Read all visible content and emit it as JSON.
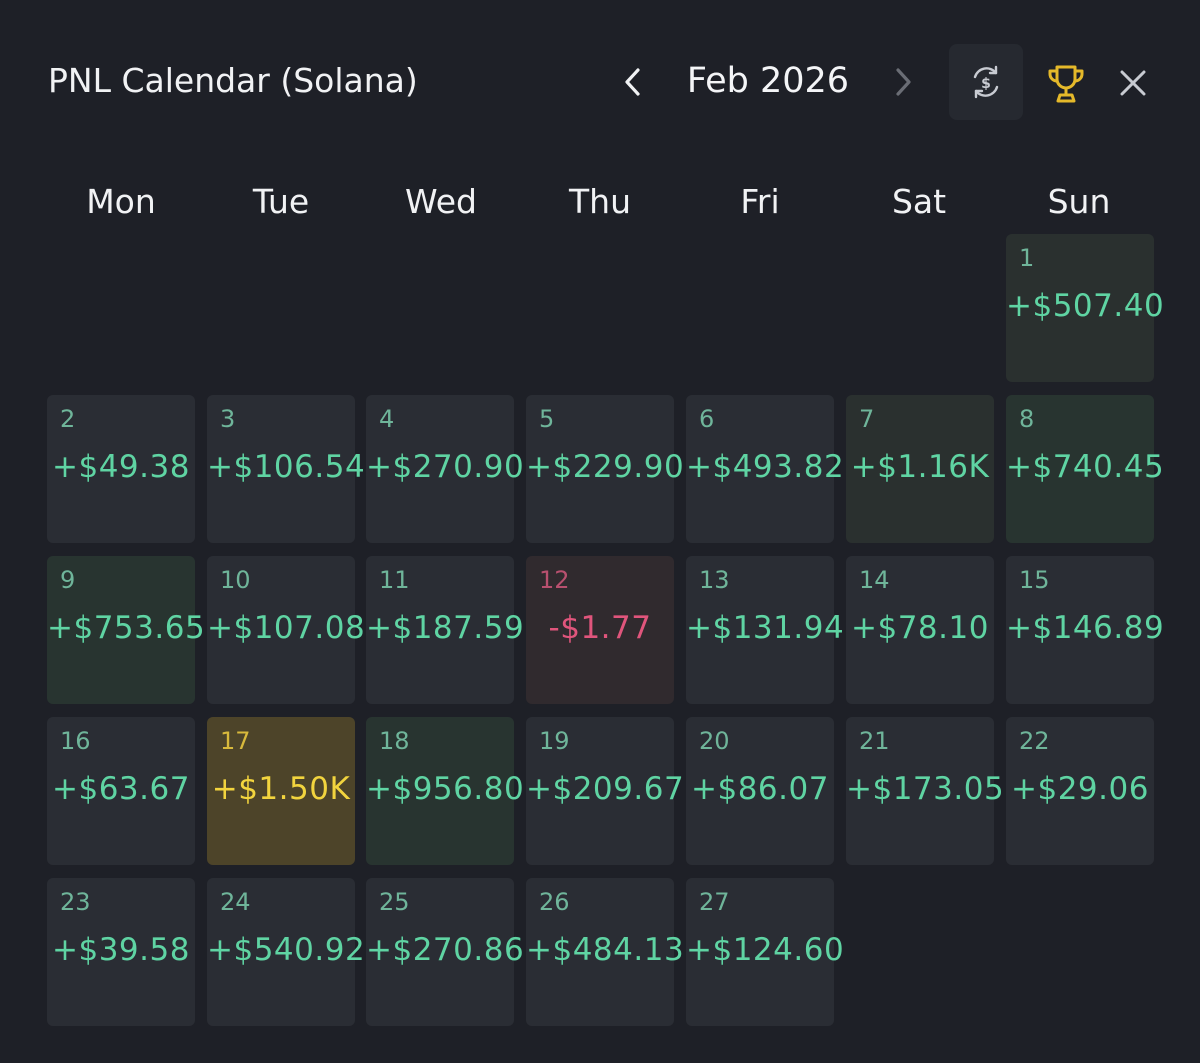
{
  "header": {
    "title": "PNL Calendar (Solana)",
    "month": "Feb 2026",
    "prev_icon": "chevron-left-icon",
    "next_icon": "chevron-right-icon",
    "currency_icon": "currency-swap-icon",
    "trophy_icon": "trophy-icon",
    "close_icon": "close-icon"
  },
  "colors": {
    "background": "#1e2027",
    "positive": "#5fd4a3",
    "negative": "#e0557c",
    "best_day": "#f2d43e",
    "trophy": "#e5b92a"
  },
  "weekdays": [
    "Mon",
    "Tue",
    "Wed",
    "Thu",
    "Fri",
    "Sat",
    "Sun"
  ],
  "days": [
    {
      "day": "1",
      "pnl": "+$507.40",
      "status": "positive"
    },
    {
      "day": "2",
      "pnl": "+$49.38",
      "status": "positive"
    },
    {
      "day": "3",
      "pnl": "+$106.54",
      "status": "positive"
    },
    {
      "day": "4",
      "pnl": "+$270.90",
      "status": "positive"
    },
    {
      "day": "5",
      "pnl": "+$229.90",
      "status": "positive"
    },
    {
      "day": "6",
      "pnl": "+$493.82",
      "status": "positive"
    },
    {
      "day": "7",
      "pnl": "+$1.16K",
      "status": "positive"
    },
    {
      "day": "8",
      "pnl": "+$740.45",
      "status": "positive"
    },
    {
      "day": "9",
      "pnl": "+$753.65",
      "status": "positive"
    },
    {
      "day": "10",
      "pnl": "+$107.08",
      "status": "positive"
    },
    {
      "day": "11",
      "pnl": "+$187.59",
      "status": "positive"
    },
    {
      "day": "12",
      "pnl": "-$1.77",
      "status": "negative"
    },
    {
      "day": "13",
      "pnl": "+$131.94",
      "status": "positive"
    },
    {
      "day": "14",
      "pnl": "+$78.10",
      "status": "positive"
    },
    {
      "day": "15",
      "pnl": "+$146.89",
      "status": "positive"
    },
    {
      "day": "16",
      "pnl": "+$63.67",
      "status": "positive"
    },
    {
      "day": "17",
      "pnl": "+$1.50K",
      "status": "best"
    },
    {
      "day": "18",
      "pnl": "+$956.80",
      "status": "positive"
    },
    {
      "day": "19",
      "pnl": "+$209.67",
      "status": "positive"
    },
    {
      "day": "20",
      "pnl": "+$86.07",
      "status": "positive"
    },
    {
      "day": "21",
      "pnl": "+$173.05",
      "status": "positive"
    },
    {
      "day": "22",
      "pnl": "+$29.06",
      "status": "positive"
    },
    {
      "day": "23",
      "pnl": "+$39.58",
      "status": "positive"
    },
    {
      "day": "24",
      "pnl": "+$540.92",
      "status": "positive"
    },
    {
      "day": "25",
      "pnl": "+$270.86",
      "status": "positive"
    },
    {
      "day": "26",
      "pnl": "+$484.13",
      "status": "positive"
    },
    {
      "day": "27",
      "pnl": "+$124.60",
      "status": "positive"
    }
  ]
}
